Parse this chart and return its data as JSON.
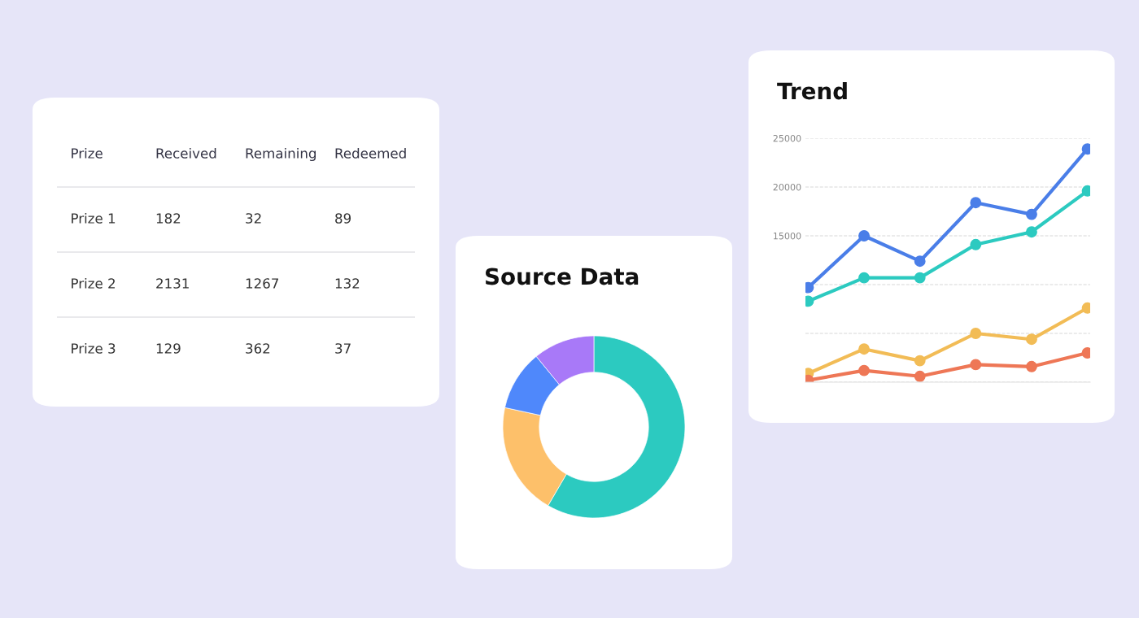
{
  "chart_data": [
    {
      "type": "other",
      "ylabel": "Prize",
      "categories": [
        "Received",
        "Remaining",
        "Redeemed"
      ],
      "y_categories": [
        "Prize 1",
        "Prize 2",
        "Prize 3"
      ],
      "cell_labels": [
        [
          "182",
          "32",
          "89"
        ],
        [
          "2131",
          "1267",
          "132"
        ],
        [
          "129",
          "362",
          "37"
        ]
      ]
    },
    {
      "type": "donut",
      "title": "Source Data",
      "categories": [
        null,
        null,
        null,
        null
      ],
      "values": [
        58.4,
        20.0,
        10.7,
        10.9
      ],
      "colors": [
        "#2ccac0",
        "#fdc06a",
        "#4f88fb",
        "#a879f8"
      ]
    },
    {
      "type": "line",
      "title": "Trend",
      "categories": [
        null,
        null,
        null,
        null,
        null,
        null
      ],
      "series": [
        {
          "color": "#4a7ee8",
          "values": [
            9700,
            15000,
            12400,
            18400,
            17200,
            23900
          ]
        },
        {
          "color": "#2ccac0",
          "values": [
            8300,
            10700,
            10700,
            14100,
            15400,
            19600
          ]
        },
        {
          "color": "#f2bc56",
          "values": [
            900,
            3400,
            2200,
            5000,
            4400,
            7600
          ]
        },
        {
          "color": "#ee7756",
          "values": [
            200,
            1200,
            600,
            1800,
            1600,
            3000
          ]
        }
      ],
      "ylim": [
        0,
        25000
      ],
      "yticks": [
        {
          "value": 0,
          "label": null
        },
        {
          "value": 5000,
          "label": null
        },
        {
          "value": 10000,
          "label": null
        },
        15000,
        20000,
        25000
      ],
      "grid": "y",
      "marker": "circle",
      "line_style": "solid"
    }
  ]
}
